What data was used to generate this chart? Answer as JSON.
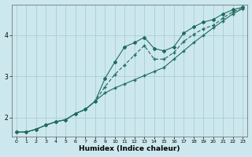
{
  "xlabel": "Humidex (Indice chaleur)",
  "ylabel": "",
  "background_color": "#cce8ee",
  "grid_color": "#aacdd6",
  "line_color": "#1e6b5e",
  "xlim": [
    -0.5,
    23.5
  ],
  "ylim": [
    1.55,
    4.75
  ],
  "yticks": [
    2,
    3,
    4
  ],
  "xticks": [
    0,
    1,
    2,
    3,
    4,
    5,
    6,
    7,
    8,
    9,
    10,
    11,
    12,
    13,
    14,
    15,
    16,
    17,
    18,
    19,
    20,
    21,
    22,
    23
  ],
  "line1_x": [
    0,
    1,
    2,
    3,
    4,
    5,
    6,
    7,
    8,
    9,
    10,
    11,
    12,
    13,
    14,
    15,
    16,
    17,
    18,
    19,
    20,
    21,
    22,
    23
  ],
  "line1_y": [
    1.65,
    1.65,
    1.72,
    1.82,
    1.9,
    1.95,
    2.1,
    2.2,
    2.4,
    2.95,
    3.35,
    3.72,
    3.82,
    3.95,
    3.68,
    3.62,
    3.72,
    4.05,
    4.2,
    4.32,
    4.38,
    4.52,
    4.62,
    4.68
  ],
  "line2_x": [
    0,
    1,
    2,
    3,
    4,
    5,
    6,
    7,
    8,
    9,
    10,
    11,
    12,
    13,
    14,
    15,
    16,
    17,
    18,
    19,
    20,
    21,
    22,
    23
  ],
  "line2_y": [
    1.65,
    1.65,
    1.72,
    1.82,
    1.9,
    1.95,
    2.1,
    2.2,
    2.4,
    2.6,
    2.72,
    2.82,
    2.92,
    3.02,
    3.12,
    3.22,
    3.42,
    3.62,
    3.82,
    4.0,
    4.18,
    4.35,
    4.52,
    4.65
  ],
  "line3_x": [
    0,
    1,
    2,
    3,
    4,
    5,
    6,
    7,
    8,
    9,
    10,
    11,
    12,
    13,
    14,
    15,
    16,
    17,
    18,
    19,
    20,
    21,
    22,
    23
  ],
  "line3_y": [
    1.65,
    1.65,
    1.72,
    1.82,
    1.9,
    1.95,
    2.1,
    2.2,
    2.4,
    2.75,
    3.05,
    3.28,
    3.52,
    3.75,
    3.42,
    3.42,
    3.58,
    3.85,
    4.02,
    4.16,
    4.24,
    4.42,
    4.57,
    4.65
  ]
}
